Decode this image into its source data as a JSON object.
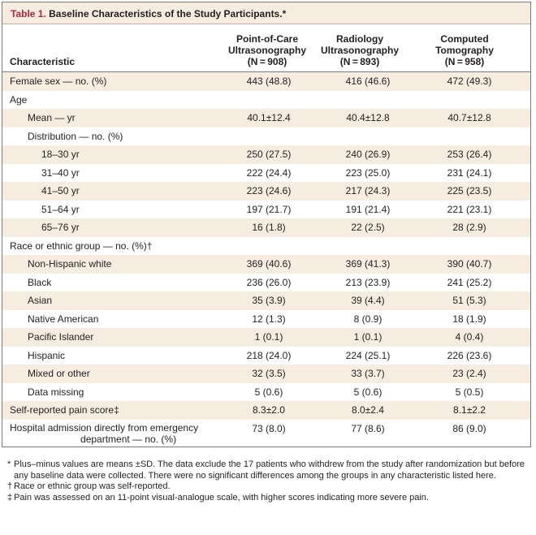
{
  "table": {
    "label": "Table 1.",
    "title": "Baseline Characteristics of the Study Participants.*",
    "headers": {
      "characteristic": "Characteristic",
      "col1": [
        "Point-of-Care",
        "Ultrasonography",
        "(N = 908)"
      ],
      "col2": [
        "Radiology",
        "Ultrasonography",
        "(N = 893)"
      ],
      "col3": [
        "Computed",
        "Tomography",
        "(N = 958)"
      ]
    },
    "rows": [
      {
        "label": "Female sex — no. (%)",
        "indent": 0,
        "shade": true,
        "v1": "443 (48.8)",
        "v2": "416 (46.6)",
        "v3": "472 (49.3)"
      },
      {
        "label": "Age",
        "indent": 0,
        "shade": false,
        "v1": "",
        "v2": "",
        "v3": ""
      },
      {
        "label": "Mean — yr",
        "indent": 1,
        "shade": true,
        "v1": "40.1±12.4",
        "v2": "40.4±12.8",
        "v3": "40.7±12.8"
      },
      {
        "label": "Distribution — no. (%)",
        "indent": 1,
        "shade": false,
        "v1": "",
        "v2": "",
        "v3": ""
      },
      {
        "label": "18–30 yr",
        "indent": 2,
        "shade": true,
        "v1": "250 (27.5)",
        "v2": "240 (26.9)",
        "v3": "253 (26.4)"
      },
      {
        "label": "31–40 yr",
        "indent": 2,
        "shade": false,
        "v1": "222 (24.4)",
        "v2": "223 (25.0)",
        "v3": "231 (24.1)"
      },
      {
        "label": "41–50 yr",
        "indent": 2,
        "shade": true,
        "v1": "223 (24.6)",
        "v2": "217 (24.3)",
        "v3": "225 (23.5)"
      },
      {
        "label": "51–64 yr",
        "indent": 2,
        "shade": false,
        "v1": "197 (21.7)",
        "v2": "191 (21.4)",
        "v3": "221 (23.1)"
      },
      {
        "label": "65–76 yr",
        "indent": 2,
        "shade": true,
        "v1": "16 (1.8)",
        "v2": "22 (2.5)",
        "v3": "28 (2.9)"
      },
      {
        "label": "Race or ethnic group — no. (%)†",
        "indent": 0,
        "shade": false,
        "v1": "",
        "v2": "",
        "v3": ""
      },
      {
        "label": "Non-Hispanic white",
        "indent": 1,
        "shade": true,
        "v1": "369 (40.6)",
        "v2": "369 (41.3)",
        "v3": "390 (40.7)"
      },
      {
        "label": "Black",
        "indent": 1,
        "shade": false,
        "v1": "236 (26.0)",
        "v2": "213 (23.9)",
        "v3": "241 (25.2)"
      },
      {
        "label": "Asian",
        "indent": 1,
        "shade": true,
        "v1": "35 (3.9)",
        "v2": "39 (4.4)",
        "v3": "51 (5.3)"
      },
      {
        "label": "Native American",
        "indent": 1,
        "shade": false,
        "v1": "12 (1.3)",
        "v2": "8 (0.9)",
        "v3": "18 (1.9)"
      },
      {
        "label": "Pacific Islander",
        "indent": 1,
        "shade": true,
        "v1": "1 (0.1)",
        "v2": "1 (0.1)",
        "v3": "4 (0.4)"
      },
      {
        "label": "Hispanic",
        "indent": 1,
        "shade": false,
        "v1": "218 (24.0)",
        "v2": "224 (25.1)",
        "v3": "226 (23.6)"
      },
      {
        "label": "Mixed or other",
        "indent": 1,
        "shade": true,
        "v1": "32 (3.5)",
        "v2": "33 (3.7)",
        "v3": "23 (2.4)"
      },
      {
        "label": "Data missing",
        "indent": 1,
        "shade": false,
        "v1": "5 (0.6)",
        "v2": "5 (0.6)",
        "v3": "5 (0.5)"
      },
      {
        "label": "Self-reported pain score‡",
        "indent": 0,
        "shade": true,
        "v1": "8.3±2.0",
        "v2": "8.0±2.4",
        "v3": "8.1±2.2"
      },
      {
        "label": [
          "Hospital admission directly from emergency",
          "department — no. (%)"
        ],
        "indent": 0,
        "shade": false,
        "tall": true,
        "v1": "73 (8.0)",
        "v2": "77 (8.6)",
        "v3": "86 (9.0)"
      }
    ],
    "footnotes": [
      {
        "symbol": "*",
        "text": "Plus–minus values are means ±SD. The data exclude the 17 patients who withdrew from the study after randomization but before any baseline data were collected. There were no significant differences among the groups in any characteristic listed here."
      },
      {
        "symbol": "†",
        "text": "Race or ethnic group was self-reported."
      },
      {
        "symbol": "‡",
        "text": "Pain was assessed on an 11-point visual-analogue scale, with higher scores indicating more severe pain."
      }
    ]
  }
}
